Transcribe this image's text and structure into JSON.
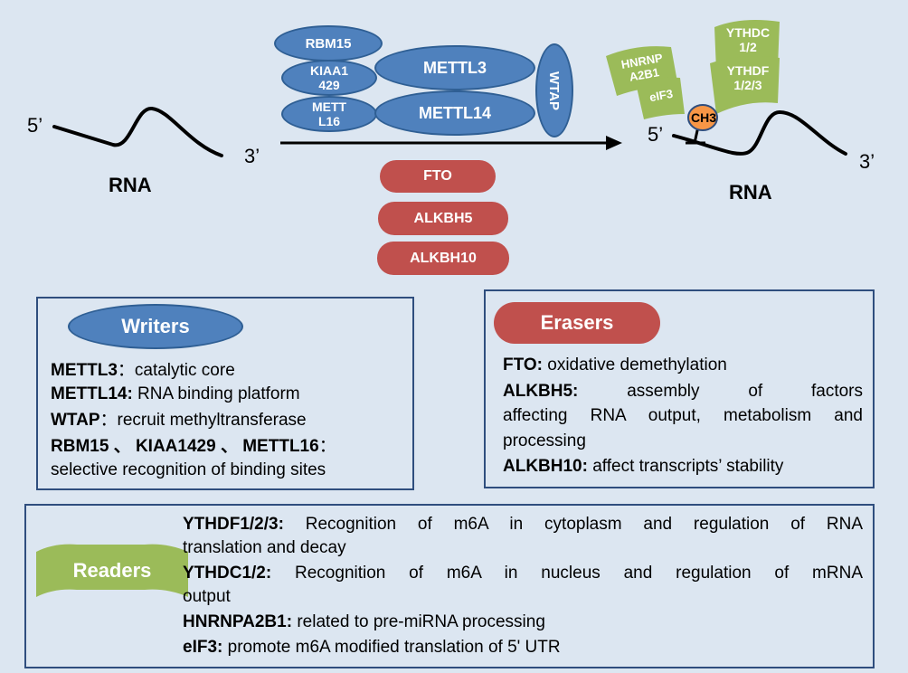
{
  "left_rna": {
    "five": "5’",
    "three": "3’",
    "label": "RNA"
  },
  "right_rna": {
    "five": "5’",
    "three": "3’",
    "label": "RNA"
  },
  "writers_complex": {
    "rbm15": "RBM15",
    "kiaa1429": [
      "KIAA1",
      "429"
    ],
    "mettl16": [
      "METT",
      "L16"
    ],
    "mettl3": "METTL3",
    "mettl14": "METTL14",
    "wtap": "WTAP"
  },
  "erasers_pills": [
    "FTO",
    "ALKBH5",
    "ALKBH10"
  ],
  "readers_tags": {
    "hnrnp": [
      "HNRNP",
      "A2B1"
    ],
    "eif3": "eIF3",
    "ythdc": [
      "YTHDC",
      "1/2"
    ],
    "ythdf": [
      "YTHDF",
      "1/2/3"
    ],
    "ch3": "CH3"
  },
  "writers_box": {
    "title": "Writers",
    "lines": [
      {
        "bold": "METTL3",
        "text": "：catalytic core"
      },
      {
        "bold": "METTL14:",
        "text": " RNA binding platform"
      },
      {
        "bold": "WTAP",
        "text": "：recruit methyltransferase"
      },
      {
        "bold": "RBM15 、 KIAA1429  、 METTL16",
        "text": "："
      },
      {
        "bold": "",
        "text": "selective recognition of binding sites"
      }
    ]
  },
  "erasers_box": {
    "title": "Erasers",
    "fto": {
      "bold": "FTO:",
      "text": " oxidative demethylation"
    },
    "alkbh5": {
      "bold": "ALKBH5:",
      "text": "assembly of factors"
    },
    "alkbh5_cont1": "affecting RNA output, metabolism and",
    "alkbh5_cont2": "processing",
    "alkbh10": {
      "bold": "ALKBH10:",
      "text": " affect transcripts’ stability"
    }
  },
  "readers_box": {
    "title": "Readers",
    "ythdf": {
      "bold": "YTHDF1/2/3:",
      "text": "Recognition of m6A in cytoplasm and regulation of RNA"
    },
    "ythdf_cont": "translation and decay",
    "ythdc": {
      "bold": "YTHDC1/2:",
      "text": "Recognition of m6A in nucleus and regulation of mRNA"
    },
    "ythdc_cont": "output",
    "hnrnp": {
      "bold": "HNRNPA2B1:",
      "text": " related to pre-miRNA processing"
    },
    "eif3": {
      "bold": "eIF3:",
      "text": " promote m6A modified translation of 5' UTR"
    }
  },
  "colors": {
    "background": "#dce6f1",
    "writer_blue": "#4f81bd",
    "eraser_red": "#c0504d",
    "reader_green": "#9bbb59",
    "ch3_orange": "#f79646"
  }
}
